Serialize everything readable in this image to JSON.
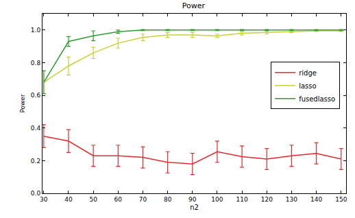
{
  "chart_data": {
    "type": "line",
    "title": "Power",
    "x_label": "n2",
    "y_label": "Power",
    "x": [
      30,
      40,
      50,
      60,
      70,
      80,
      90,
      100,
      110,
      120,
      130,
      140,
      150
    ],
    "series": [
      {
        "name": "ridge",
        "color": "#e8282b",
        "values": [
          0.35,
          0.32,
          0.23,
          0.23,
          0.22,
          0.19,
          0.18,
          0.255,
          0.225,
          0.21,
          0.23,
          0.245,
          0.21
        ],
        "error": [
          0.07,
          0.07,
          0.065,
          0.065,
          0.065,
          0.065,
          0.065,
          0.065,
          0.065,
          0.065,
          0.065,
          0.065,
          0.065
        ]
      },
      {
        "name": "lasso",
        "color": "#c9d230",
        "values": [
          0.68,
          0.78,
          0.86,
          0.92,
          0.955,
          0.97,
          0.97,
          0.965,
          0.98,
          0.985,
          0.99,
          0.995,
          0.995
        ],
        "error": [
          0.07,
          0.055,
          0.035,
          0.03,
          0.02,
          0.015,
          0.015,
          0.01,
          0.01,
          0.008,
          0.006,
          0.004,
          0.004
        ]
      },
      {
        "name": "fusedlasso",
        "color": "#2e9e2e",
        "values": [
          0.68,
          0.93,
          0.965,
          0.99,
          1.0,
          1.0,
          1.0,
          1.0,
          1.0,
          1.0,
          1.0,
          1.0,
          1.0
        ],
        "error": [
          0.07,
          0.03,
          0.03,
          0.01,
          0.003,
          0.003,
          0.003,
          0.003,
          0.003,
          0.003,
          0.003,
          0.003,
          0.003
        ]
      }
    ],
    "xlim": [
      29.5,
      152
    ],
    "xticks": [
      30,
      40,
      50,
      60,
      70,
      80,
      90,
      100,
      110,
      120,
      130,
      140,
      150
    ],
    "ylim": [
      0,
      1.1
    ],
    "yticks": [
      {
        "value": 0,
        "label": "0.0"
      },
      0.2,
      0.4,
      0.6,
      0.8,
      {
        "value": 1,
        "label": "1.0"
      }
    ],
    "grid": false,
    "legend": "center right"
  }
}
